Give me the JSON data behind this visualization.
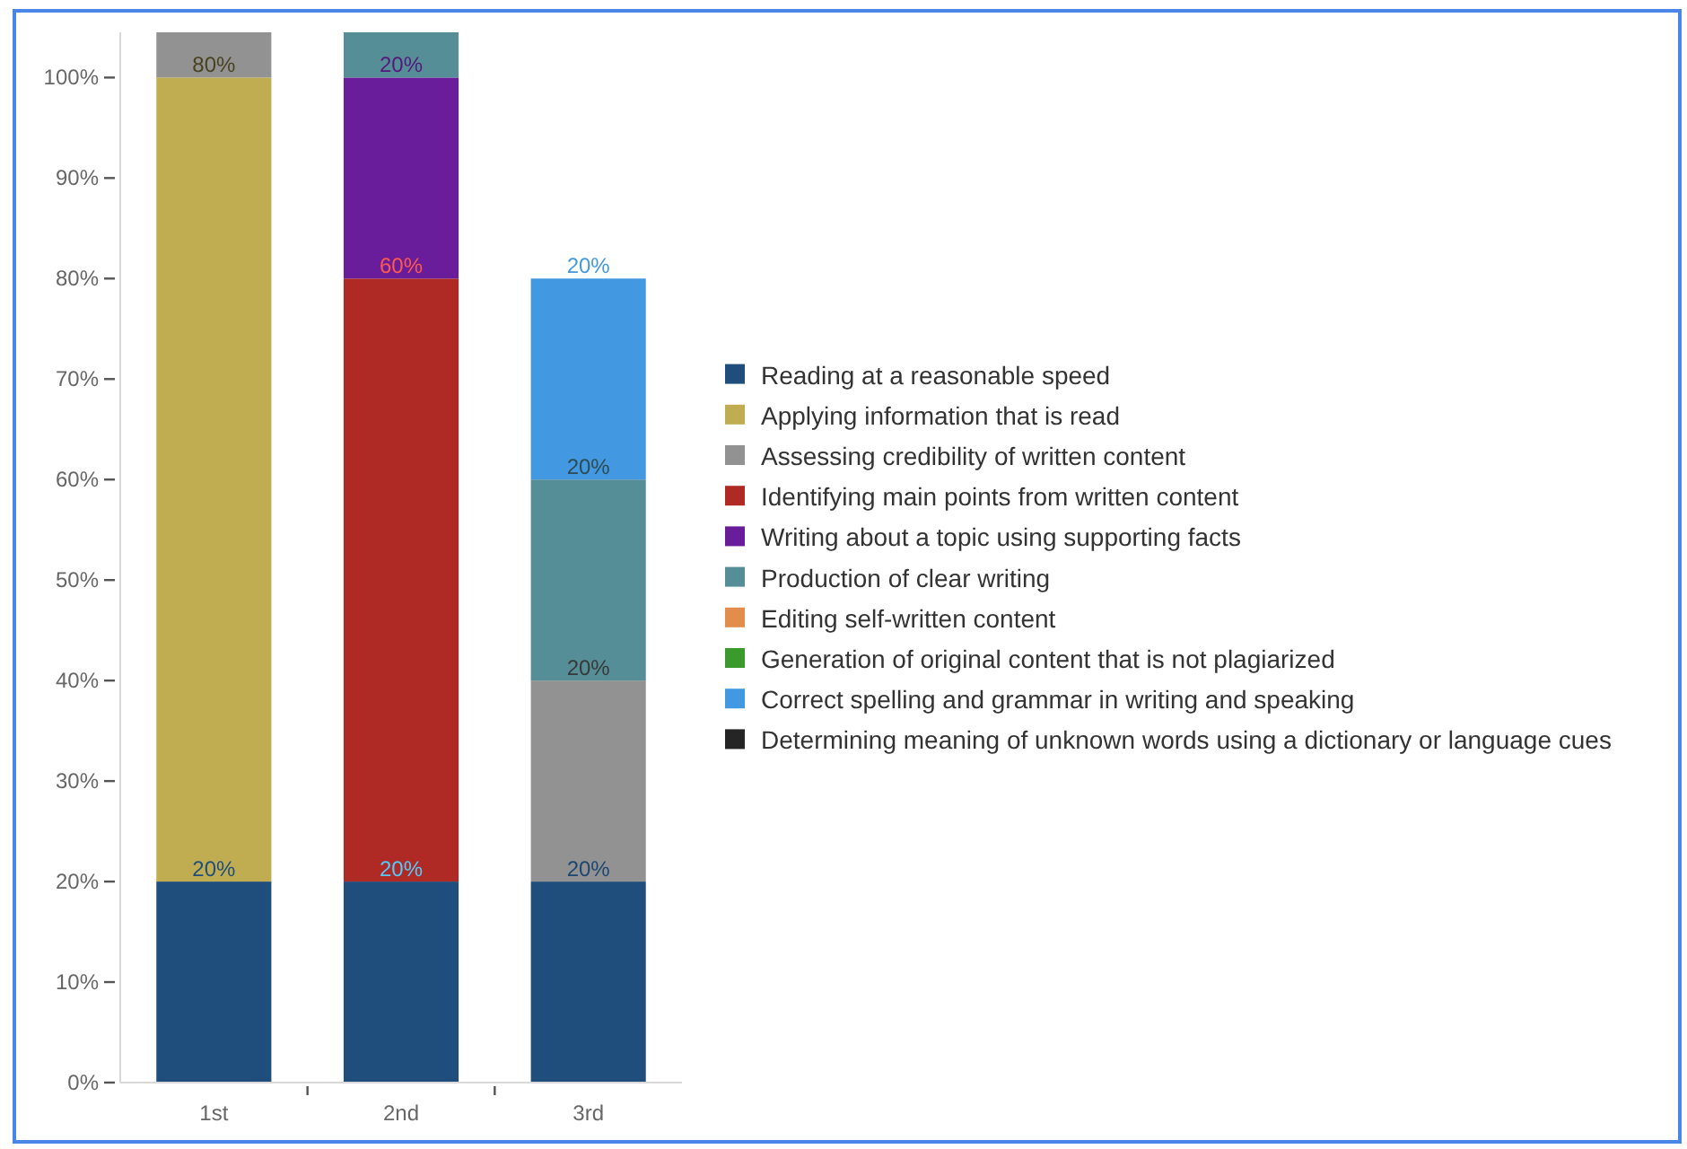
{
  "chart_data": {
    "type": "bar",
    "stacked": true,
    "categories": [
      "1st",
      "2nd",
      "3rd"
    ],
    "series": [
      {
        "name": "Reading at a reasonable speed",
        "color": "#1f4e7d",
        "values": [
          20,
          20,
          20
        ],
        "value_labels": [
          "20%",
          "20%",
          "20%"
        ]
      },
      {
        "name": "Applying information that is read",
        "color": "#c0ad52",
        "values": [
          80,
          null,
          null
        ],
        "value_labels": [
          "80%",
          null,
          null
        ]
      },
      {
        "name": "Assessing credibility of written content",
        "color": "#929292",
        "values": [
          4.5,
          null,
          20
        ],
        "value_labels": [
          null,
          null,
          "20%"
        ]
      },
      {
        "name": "Identifying main points from written content",
        "color": "#b02a25",
        "values": [
          null,
          60,
          null
        ],
        "value_labels": [
          null,
          "60%",
          null
        ]
      },
      {
        "name": "Writing about a topic using supporting facts",
        "color": "#6a1d9a",
        "values": [
          null,
          20,
          null
        ],
        "value_labels": [
          null,
          "20%",
          null
        ]
      },
      {
        "name": "Production of clear writing",
        "color": "#568e98",
        "values": [
          null,
          4.5,
          20
        ],
        "value_labels": [
          null,
          null,
          "20%"
        ]
      },
      {
        "name": "Editing self-written content",
        "color": "#e38d4c",
        "values": [
          null,
          null,
          null
        ]
      },
      {
        "name": "Generation of original content that is not plagiarized",
        "color": "#3a9a2c",
        "values": [
          null,
          null,
          null
        ]
      },
      {
        "name": "Correct spelling and grammar in writing and speaking",
        "color": "#4299e1",
        "values": [
          null,
          null,
          20
        ],
        "value_labels": [
          null,
          null,
          "20%"
        ]
      },
      {
        "name": "Determining meaning of unknown words using a dictionary or language cues",
        "color": "#252525",
        "values": [
          null,
          null,
          null
        ]
      }
    ],
    "ylim": [
      0,
      104.5
    ],
    "yticks": [
      {
        "value": 0,
        "label": "0%"
      },
      {
        "value": 10,
        "label": "10%"
      },
      {
        "value": 20,
        "label": "20%"
      },
      {
        "value": 30,
        "label": "30%"
      },
      {
        "value": 40,
        "label": "40%"
      },
      {
        "value": 50,
        "label": "50%"
      },
      {
        "value": 60,
        "label": "60%"
      },
      {
        "value": 70,
        "label": "70%"
      },
      {
        "value": 80,
        "label": "80%"
      },
      {
        "value": 90,
        "label": "90%"
      },
      {
        "value": 100,
        "label": "100%"
      }
    ],
    "legend": "right"
  }
}
